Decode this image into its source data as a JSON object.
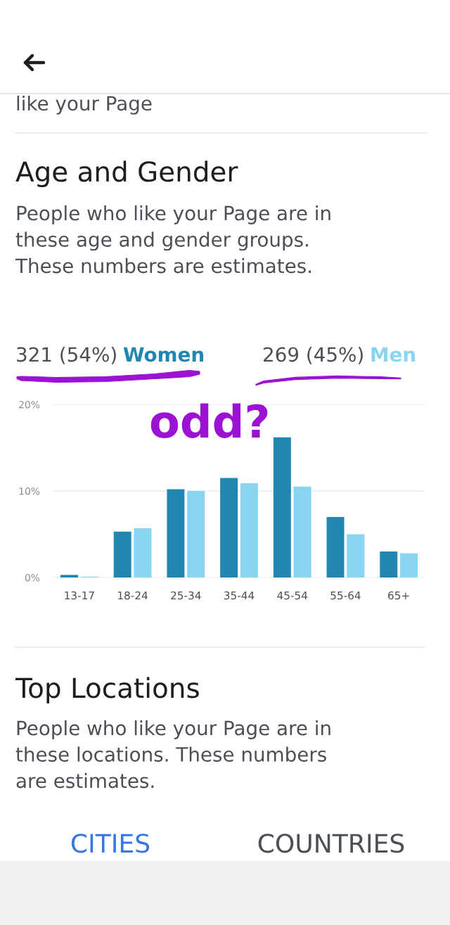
{
  "chart_data": {
    "type": "bar",
    "title": "Age and Gender",
    "subtitle": "People who like your Page are in\nthese age and gender groups.\nThese numbers are estimates.",
    "categories": [
      "13-17",
      "18-24",
      "25-34",
      "35-44",
      "45-54",
      "55-64",
      "65+"
    ],
    "series": [
      {
        "name": "Women",
        "color": "#2187b0",
        "values": [
          0.3,
          5.3,
          10.2,
          11.5,
          16.2,
          7.0,
          3.0
        ]
      },
      {
        "name": "Men",
        "color": "#87d5f0",
        "values": [
          0.1,
          5.7,
          10.0,
          10.9,
          10.5,
          5.0,
          2.8
        ]
      }
    ],
    "ylim": [
      0,
      20
    ],
    "yticks": [
      {
        "value": 0,
        "label": "0%"
      },
      {
        "value": 10,
        "label": "10%"
      },
      {
        "value": 20,
        "label": "20%"
      }
    ],
    "grid": "y",
    "legend": "top",
    "annotations": [
      "like your Page",
      "321 (54%)",
      "269 (45%)",
      "odd?",
      "Top Locations",
      "People who like your Page are in\nthese locations. These numbers\nare estimates.",
      "CITIES",
      "COUNTRIES"
    ]
  }
}
